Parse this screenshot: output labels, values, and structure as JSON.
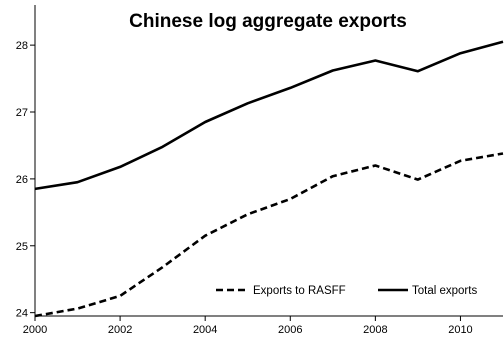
{
  "chart_data": {
    "type": "line",
    "title": "Chinese log aggregate exports",
    "xlabel": "",
    "ylabel": "",
    "x": [
      2000,
      2001,
      2002,
      2003,
      2004,
      2005,
      2006,
      2007,
      2008,
      2009,
      2010,
      2011
    ],
    "xlim": [
      2000,
      2011
    ],
    "ylim": [
      23.95,
      28.6
    ],
    "xticks": [
      2000,
      2002,
      2004,
      2006,
      2008,
      2010
    ],
    "yticks": [
      24,
      25,
      26,
      27,
      28
    ],
    "grid": false,
    "legend_position": "bottom-right",
    "series": [
      {
        "name": "Exports to RASFF",
        "style": "dashed",
        "color": "#000000",
        "values": [
          23.95,
          24.06,
          24.25,
          24.68,
          25.15,
          25.47,
          25.7,
          26.04,
          26.2,
          25.99,
          26.27,
          26.38
        ]
      },
      {
        "name": "Total exports",
        "style": "solid",
        "color": "#000000",
        "values": [
          25.85,
          25.95,
          26.18,
          26.48,
          26.85,
          27.13,
          27.36,
          27.62,
          27.77,
          27.61,
          27.88,
          28.05
        ]
      }
    ]
  }
}
